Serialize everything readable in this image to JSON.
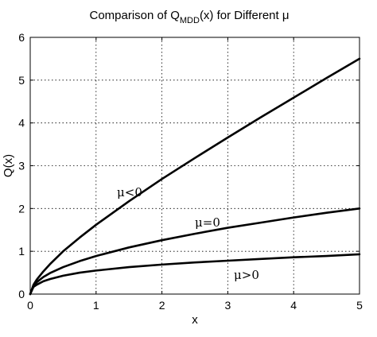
{
  "chart_data": {
    "type": "line",
    "title_prefix": "Comparison of Q",
    "title_sub": "MDD",
    "title_suffix": "(x) for Different μ",
    "xlabel": "x",
    "ylabel": "Q(x)",
    "xlim": [
      0,
      5
    ],
    "ylim": [
      0,
      6
    ],
    "xticks": [
      "0",
      "1",
      "2",
      "3",
      "4",
      "5"
    ],
    "yticks": [
      "0",
      "1",
      "2",
      "3",
      "4",
      "5",
      "6"
    ],
    "grid": true,
    "x": [
      0,
      0.05,
      0.1,
      0.2,
      0.3,
      0.5,
      0.75,
      1,
      1.5,
      2,
      2.5,
      3,
      3.5,
      4,
      4.5,
      5
    ],
    "series": [
      {
        "label": "μ<0",
        "values": [
          0,
          0.22,
          0.34,
          0.53,
          0.7,
          1.0,
          1.32,
          1.62,
          2.17,
          2.69,
          3.18,
          3.66,
          4.13,
          4.59,
          5.05,
          5.5
        ]
      },
      {
        "label": "μ=0",
        "values": [
          0,
          0.2,
          0.28,
          0.4,
          0.49,
          0.63,
          0.77,
          0.89,
          1.09,
          1.26,
          1.41,
          1.55,
          1.67,
          1.79,
          1.9,
          2.0
        ]
      },
      {
        "label": "μ>0",
        "values": [
          0,
          0.17,
          0.22,
          0.3,
          0.35,
          0.43,
          0.5,
          0.55,
          0.63,
          0.69,
          0.74,
          0.78,
          0.82,
          0.86,
          0.89,
          0.93
        ]
      }
    ],
    "color": "#000000"
  }
}
